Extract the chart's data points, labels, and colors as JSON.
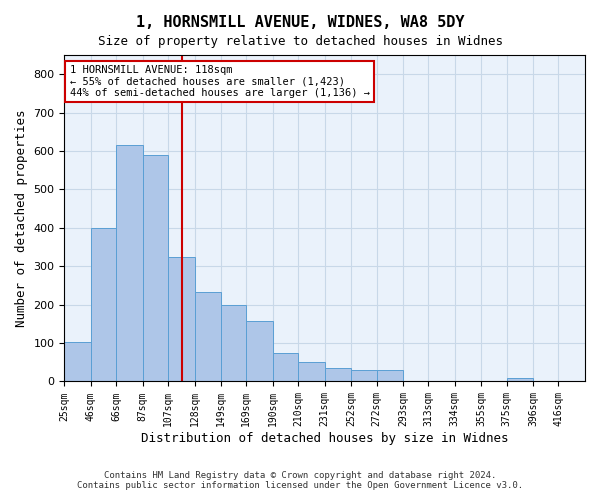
{
  "title_line1": "1, HORNSMILL AVENUE, WIDNES, WA8 5DY",
  "title_line2": "Size of property relative to detached houses in Widnes",
  "xlabel": "Distribution of detached houses by size in Widnes",
  "ylabel": "Number of detached properties",
  "footer_line1": "Contains HM Land Registry data © Crown copyright and database right 2024.",
  "footer_line2": "Contains public sector information licensed under the Open Government Licence v3.0.",
  "annotation_line1": "1 HORNSMILL AVENUE: 118sqm",
  "annotation_line2": "← 55% of detached houses are smaller (1,423)",
  "annotation_line3": "44% of semi-detached houses are larger (1,136) →",
  "bar_color": "#aec6e8",
  "bar_edge_color": "#5a9fd4",
  "grid_color": "#c8d8e8",
  "background_color": "#eaf2fb",
  "property_line_color": "#cc0000",
  "annotation_box_color": "#ffffff",
  "annotation_box_edge_color": "#cc0000",
  "bins": [
    25,
    46,
    66,
    87,
    107,
    128,
    149,
    169,
    190,
    210,
    231,
    252,
    272,
    293,
    313,
    334,
    355,
    375,
    396,
    416,
    437
  ],
  "counts": [
    103,
    400,
    615,
    590,
    325,
    234,
    200,
    158,
    75,
    50,
    35,
    30,
    30,
    0,
    0,
    0,
    0,
    10,
    0,
    0
  ],
  "property_size": 118,
  "ylim": [
    0,
    850
  ],
  "yticks": [
    0,
    100,
    200,
    300,
    400,
    500,
    600,
    700,
    800
  ]
}
